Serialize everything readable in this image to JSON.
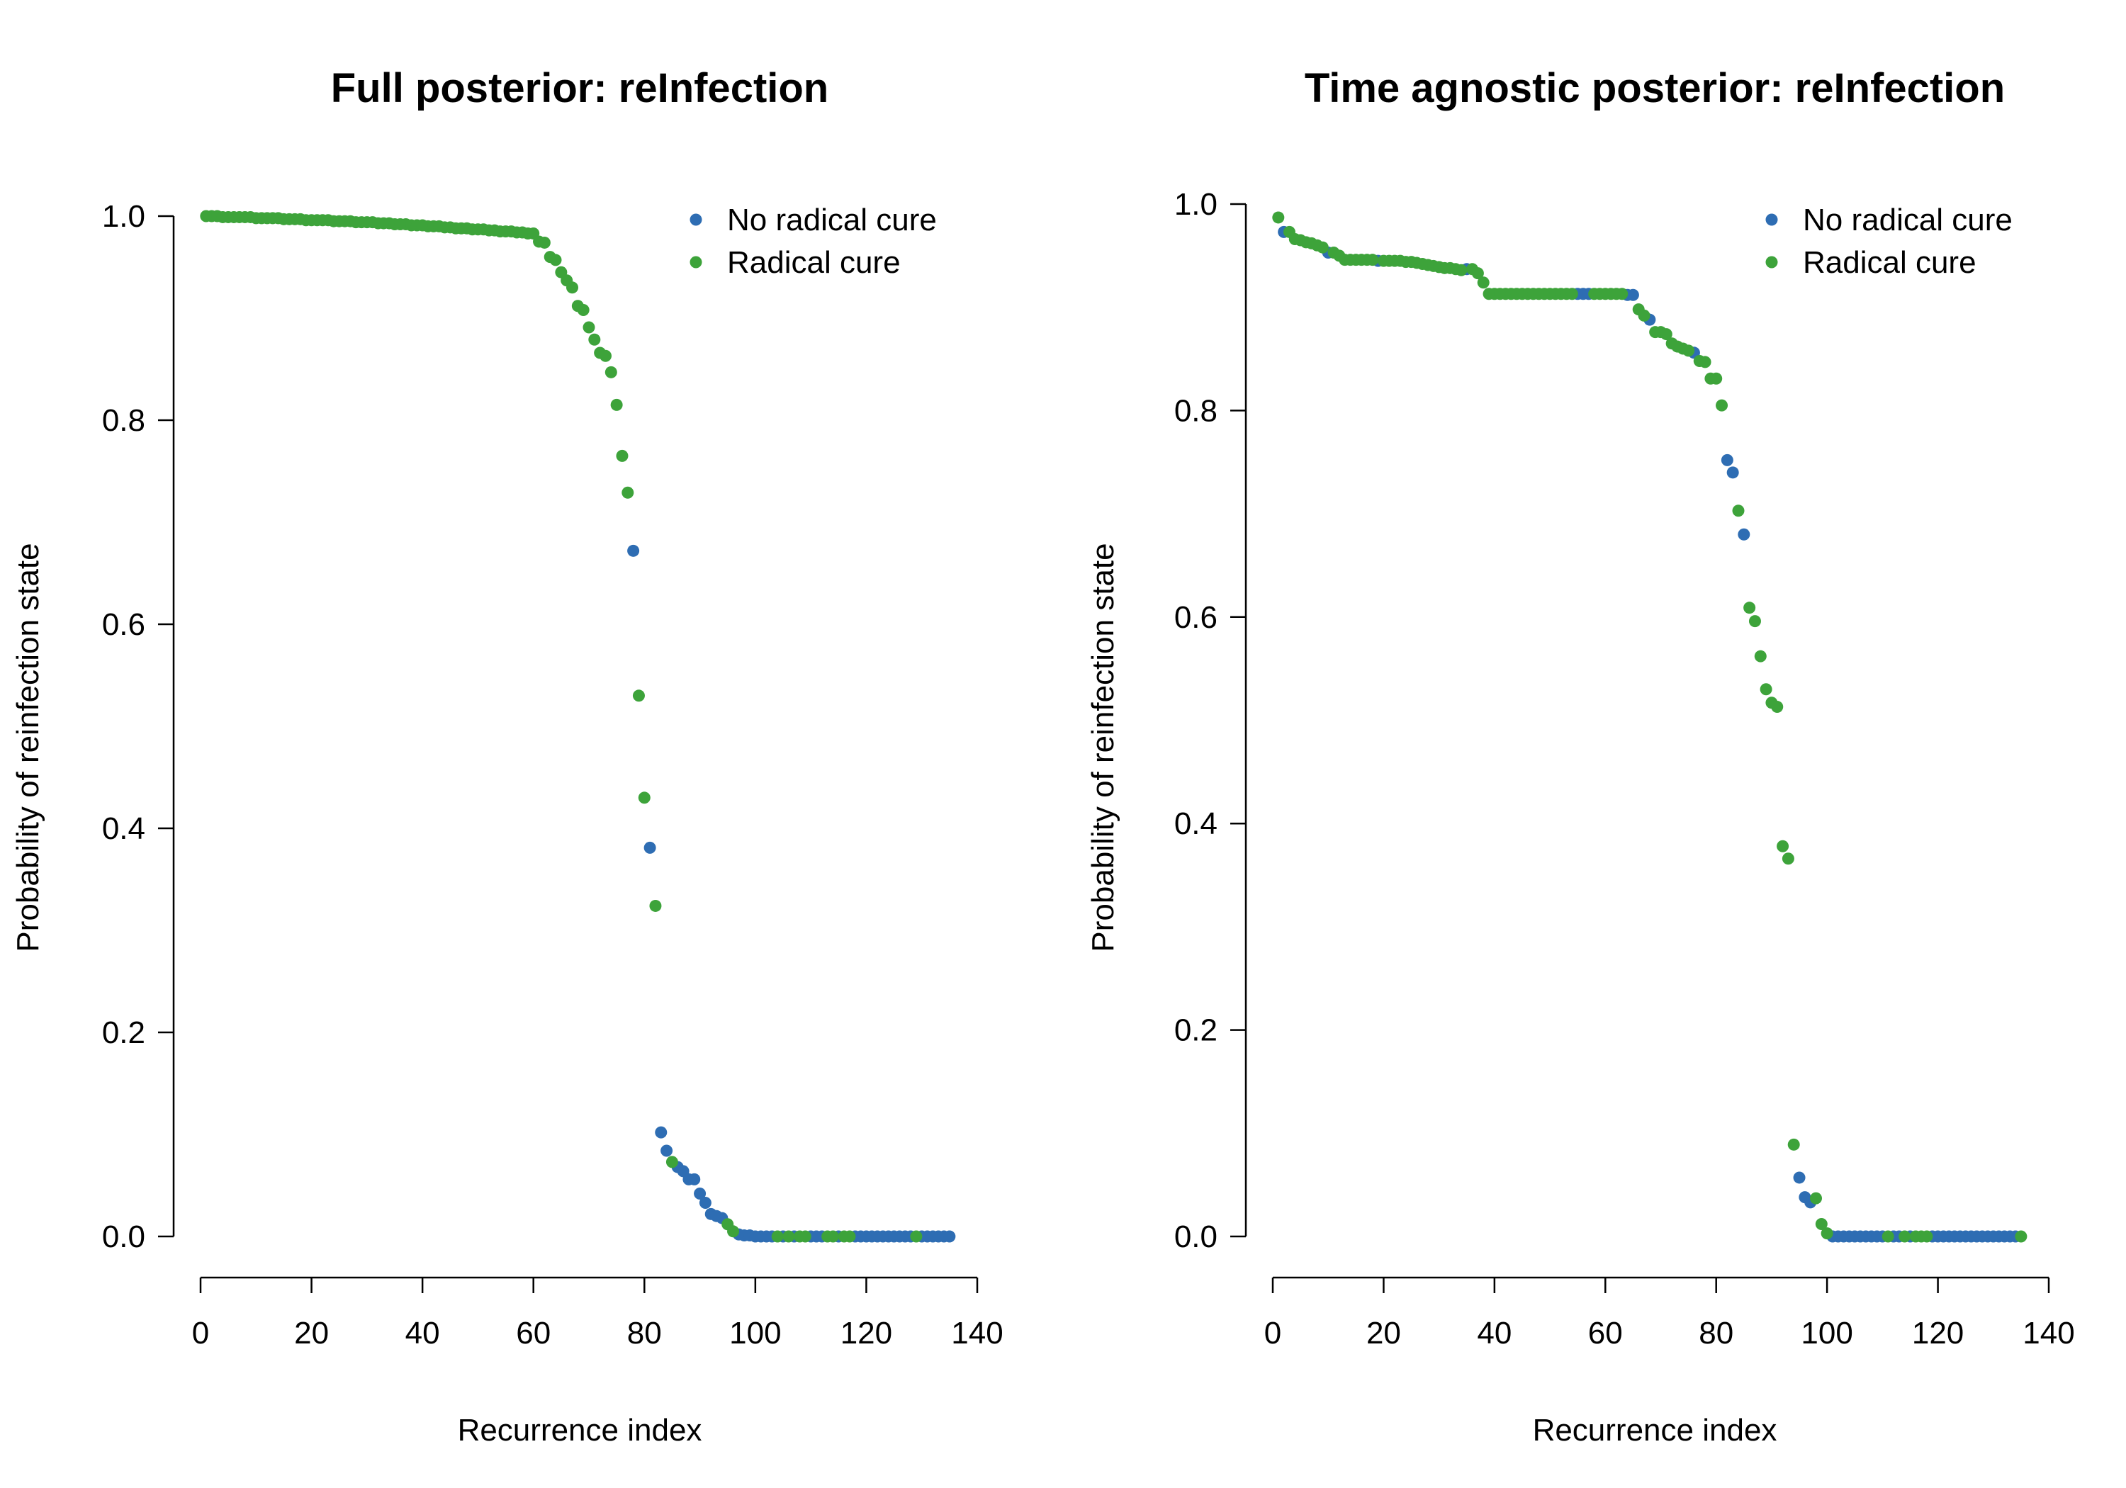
{
  "chart_data": [
    {
      "type": "scatter",
      "title": "Full posterior: reInfection",
      "xlabel": "Recurrence index",
      "ylabel": "Probability of reinfection state",
      "xlim": [
        0,
        140
      ],
      "ylim": [
        0,
        1
      ],
      "xticks": [
        "0",
        "20",
        "40",
        "60",
        "80",
        "100",
        "120",
        "140"
      ],
      "yticks": [
        "0.0",
        "0.2",
        "0.4",
        "0.6",
        "0.8",
        "1.0"
      ],
      "legend_position": "top-right",
      "colors": {
        "No radical cure": "#2e6db3",
        "Radical cure": "#3da33a"
      },
      "series": [
        {
          "name": "No radical cure",
          "color": "#2e6db3",
          "x": [
            78,
            81,
            83,
            84,
            86,
            87,
            88,
            89,
            90,
            91,
            92,
            93,
            94,
            97,
            98,
            99,
            100,
            101,
            102,
            103,
            105,
            107,
            110,
            111,
            112,
            115,
            118,
            119,
            120,
            121,
            122,
            123,
            124,
            125,
            126,
            127,
            128,
            130,
            131,
            132,
            133,
            134,
            135
          ],
          "y": [
            0.672,
            0.381,
            0.102,
            0.084,
            0.068,
            0.064,
            0.056,
            0.056,
            0.042,
            0.033,
            0.022,
            0.02,
            0.018,
            0.002,
            0.001,
            0.001,
            0.0,
            0.0,
            0.0,
            0.0,
            0.0,
            0.0,
            0.0,
            0.0,
            0.0,
            0.0,
            0.0,
            0.0,
            0.0,
            0.0,
            0.0,
            0.0,
            0.0,
            0.0,
            0.0,
            0.0,
            0.0,
            0.0,
            0.0,
            0.0,
            0.0,
            0.0,
            0.0
          ]
        },
        {
          "name": "Radical cure",
          "color": "#3da33a",
          "x": [
            1,
            2,
            3,
            4,
            5,
            6,
            7,
            8,
            9,
            10,
            11,
            12,
            13,
            14,
            15,
            16,
            17,
            18,
            19,
            20,
            21,
            22,
            23,
            24,
            25,
            26,
            27,
            28,
            29,
            30,
            31,
            32,
            33,
            34,
            35,
            36,
            37,
            38,
            39,
            40,
            41,
            42,
            43,
            44,
            45,
            46,
            47,
            48,
            49,
            50,
            51,
            52,
            53,
            54,
            55,
            56,
            57,
            58,
            59,
            60,
            61,
            62,
            63,
            64,
            65,
            66,
            67,
            68,
            69,
            70,
            71,
            72,
            73,
            74,
            75,
            76,
            77,
            79,
            80,
            82,
            85,
            95,
            96,
            104,
            106,
            108,
            109,
            113,
            114,
            116,
            117,
            129
          ],
          "y": [
            1.0,
            1.0,
            1.0,
            0.999,
            0.999,
            0.999,
            0.999,
            0.999,
            0.999,
            0.998,
            0.998,
            0.998,
            0.998,
            0.998,
            0.997,
            0.997,
            0.997,
            0.997,
            0.996,
            0.996,
            0.996,
            0.996,
            0.996,
            0.995,
            0.995,
            0.995,
            0.995,
            0.994,
            0.994,
            0.994,
            0.994,
            0.993,
            0.993,
            0.993,
            0.992,
            0.992,
            0.992,
            0.991,
            0.991,
            0.991,
            0.99,
            0.99,
            0.99,
            0.989,
            0.989,
            0.988,
            0.988,
            0.988,
            0.987,
            0.987,
            0.987,
            0.986,
            0.986,
            0.985,
            0.985,
            0.985,
            0.984,
            0.984,
            0.983,
            0.983,
            0.975,
            0.974,
            0.96,
            0.957,
            0.945,
            0.937,
            0.93,
            0.912,
            0.908,
            0.891,
            0.879,
            0.866,
            0.863,
            0.847,
            0.815,
            0.765,
            0.729,
            0.53,
            0.43,
            0.324,
            0.073,
            0.012,
            0.005,
            0.0,
            0.0,
            0.0,
            0.0,
            0.0,
            0.0,
            0.0,
            0.0,
            0.0
          ]
        }
      ]
    },
    {
      "type": "scatter",
      "title": "Time agnostic posterior: reInfection",
      "xlabel": "Recurrence index",
      "ylabel": "Probability of reinfection state",
      "xlim": [
        0,
        140
      ],
      "ylim": [
        0,
        1
      ],
      "xticks": [
        "0",
        "20",
        "40",
        "60",
        "80",
        "100",
        "120",
        "140"
      ],
      "yticks": [
        "0.0",
        "0.2",
        "0.4",
        "0.6",
        "0.8",
        "1.0"
      ],
      "legend_position": "top-right",
      "colors": {
        "No radical cure": "#2e6db3",
        "Radical cure": "#3da33a"
      },
      "series": [
        {
          "name": "No radical cure",
          "color": "#2e6db3",
          "x": [
            2,
            10,
            19,
            35,
            55,
            56,
            57,
            64,
            65,
            68,
            76,
            82,
            83,
            85,
            95,
            96,
            97,
            101,
            102,
            103,
            104,
            105,
            106,
            107,
            108,
            109,
            110,
            112,
            113,
            115,
            119,
            120,
            121,
            122,
            123,
            124,
            125,
            126,
            127,
            128,
            129,
            130,
            131,
            132,
            133,
            134
          ],
          "y": [
            0.973,
            0.953,
            0.945,
            0.937,
            0.913,
            0.913,
            0.913,
            0.912,
            0.912,
            0.888,
            0.856,
            0.752,
            0.74,
            0.68,
            0.057,
            0.038,
            0.033,
            0.0,
            0.0,
            0.0,
            0.0,
            0.0,
            0.0,
            0.0,
            0.0,
            0.0,
            0.0,
            0.0,
            0.0,
            0.0,
            0.0,
            0.0,
            0.0,
            0.0,
            0.0,
            0.0,
            0.0,
            0.0,
            0.0,
            0.0,
            0.0,
            0.0,
            0.0,
            0.0,
            0.0,
            0.0
          ]
        },
        {
          "name": "Radical cure",
          "color": "#3da33a",
          "x": [
            1,
            3,
            4,
            5,
            6,
            7,
            8,
            9,
            11,
            12,
            13,
            14,
            15,
            16,
            17,
            18,
            20,
            21,
            22,
            23,
            24,
            25,
            26,
            27,
            28,
            29,
            30,
            31,
            32,
            33,
            34,
            36,
            37,
            38,
            39,
            40,
            41,
            42,
            43,
            44,
            45,
            46,
            47,
            48,
            49,
            50,
            51,
            52,
            53,
            54,
            58,
            59,
            60,
            61,
            62,
            63,
            66,
            67,
            69,
            70,
            71,
            72,
            73,
            74,
            75,
            77,
            78,
            79,
            80,
            81,
            84,
            86,
            87,
            88,
            89,
            90,
            91,
            92,
            93,
            94,
            98,
            99,
            100,
            111,
            114,
            116,
            117,
            118,
            135
          ],
          "y": [
            0.987,
            0.973,
            0.966,
            0.965,
            0.963,
            0.962,
            0.96,
            0.958,
            0.953,
            0.95,
            0.946,
            0.946,
            0.946,
            0.946,
            0.946,
            0.946,
            0.945,
            0.945,
            0.945,
            0.945,
            0.944,
            0.944,
            0.943,
            0.942,
            0.941,
            0.94,
            0.939,
            0.938,
            0.938,
            0.937,
            0.936,
            0.937,
            0.933,
            0.924,
            0.913,
            0.913,
            0.913,
            0.913,
            0.913,
            0.913,
            0.913,
            0.913,
            0.913,
            0.913,
            0.913,
            0.913,
            0.913,
            0.913,
            0.913,
            0.913,
            0.913,
            0.913,
            0.913,
            0.913,
            0.913,
            0.913,
            0.898,
            0.892,
            0.876,
            0.876,
            0.874,
            0.865,
            0.862,
            0.86,
            0.858,
            0.848,
            0.847,
            0.831,
            0.831,
            0.805,
            0.703,
            0.609,
            0.596,
            0.562,
            0.53,
            0.517,
            0.513,
            0.378,
            0.366,
            0.089,
            0.037,
            0.012,
            0.003,
            0.0,
            0.0,
            0.0,
            0.0,
            0.0,
            0.0
          ]
        }
      ]
    }
  ]
}
